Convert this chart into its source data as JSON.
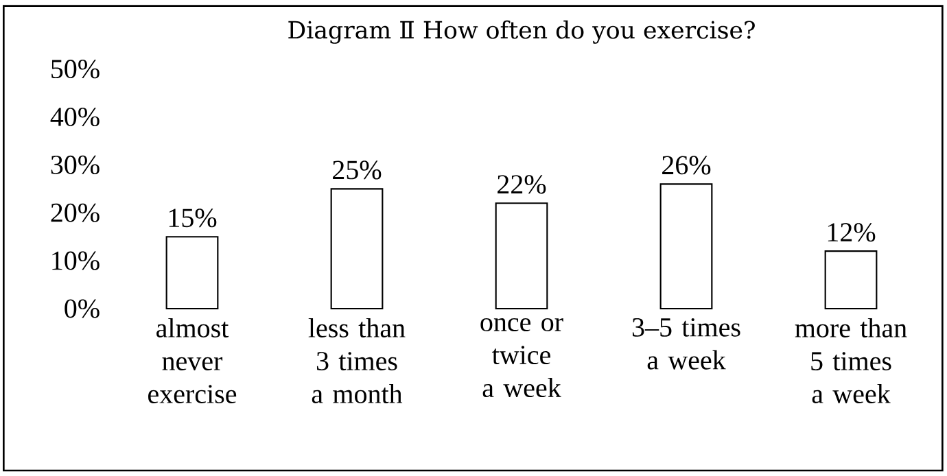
{
  "chart_data": {
    "type": "bar",
    "title": "Diagram Ⅱ How often do you exercise?",
    "categories": [
      "almost never exercise",
      "less than 3 times a month",
      "once or twice a week",
      "3–5 times a week",
      "more than 5 times a week"
    ],
    "values": [
      15,
      25,
      22,
      26,
      12
    ],
    "value_labels": [
      "15%",
      "25%",
      "22%",
      "26%",
      "12%"
    ],
    "color": "#ffffff",
    "ylim": [
      0,
      50
    ],
    "yticks": [
      {
        "value": 0,
        "label": "0%"
      },
      {
        "value": 10,
        "label": "10%"
      },
      {
        "value": 20,
        "label": "20%"
      },
      {
        "value": 30,
        "label": "30%"
      },
      {
        "value": 40,
        "label": "40%"
      },
      {
        "value": 50,
        "label": "50%"
      }
    ],
    "grid": false
  }
}
